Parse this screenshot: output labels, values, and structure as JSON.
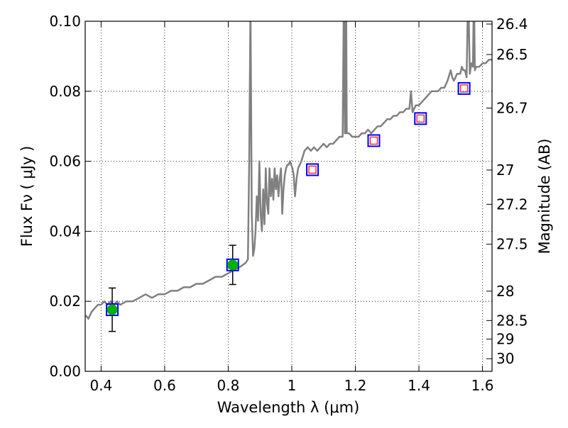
{
  "chart_data": {
    "type": "line",
    "title": "",
    "xlabel": "Wavelength  λ (μm)",
    "ylabel": "Flux  Fν  ( μJy )",
    "ylabel_right": "Magnitude (AB)",
    "xlim": [
      0.35,
      1.63
    ],
    "ylim": [
      0.0,
      0.1
    ],
    "grid": true,
    "legend": "none",
    "x_ticks": [
      0.4,
      0.6,
      0.8,
      1.0,
      1.2,
      1.4,
      1.6
    ],
    "x_tick_labels": [
      "0.4",
      "0.6",
      "0.8",
      "1",
      "1.2",
      "1.4",
      "1.6"
    ],
    "y_ticks": [
      0.0,
      0.02,
      0.04,
      0.06,
      0.08,
      0.1
    ],
    "y_tick_labels": [
      "0.00",
      "0.02",
      "0.04",
      "0.06",
      "0.08",
      "0.10"
    ],
    "right_ticks": [
      {
        "flux": 0.0992,
        "label": "26.4"
      },
      {
        "flux": 0.0905,
        "label": "26.5"
      },
      {
        "flux": 0.0752,
        "label": "26.7"
      },
      {
        "flux": 0.0575,
        "label": "27"
      },
      {
        "flux": 0.0477,
        "label": "27.2"
      },
      {
        "flux": 0.0363,
        "label": "27.5"
      },
      {
        "flux": 0.0229,
        "label": "28"
      },
      {
        "flux": 0.0145,
        "label": "28.5"
      },
      {
        "flux": 0.0092,
        "label": "29"
      },
      {
        "flux": 0.0036,
        "label": "30"
      }
    ],
    "series": [
      {
        "color": "#808080",
        "x": [
          0.352,
          0.36,
          0.37,
          0.38,
          0.39,
          0.4,
          0.41,
          0.42,
          0.43,
          0.44,
          0.45,
          0.46,
          0.48,
          0.5,
          0.52,
          0.54,
          0.56,
          0.58,
          0.6,
          0.62,
          0.64,
          0.66,
          0.68,
          0.7,
          0.72,
          0.74,
          0.76,
          0.78,
          0.8,
          0.82,
          0.84,
          0.855,
          0.862,
          0.866,
          0.87,
          0.874,
          0.878,
          0.882,
          0.886,
          0.89,
          0.894,
          0.898,
          0.902,
          0.906,
          0.91,
          0.914,
          0.918,
          0.922,
          0.926,
          0.93,
          0.934,
          0.938,
          0.942,
          0.946,
          0.95,
          0.954,
          0.958,
          0.962,
          0.966,
          0.97,
          0.974,
          0.978,
          0.982,
          0.986,
          0.99,
          0.994,
          0.998,
          1.002,
          1.006,
          1.01,
          1.015,
          1.02,
          1.03,
          1.04,
          1.05,
          1.06,
          1.07,
          1.08,
          1.09,
          1.1,
          1.11,
          1.12,
          1.13,
          1.14,
          1.15,
          1.16,
          1.164,
          1.167,
          1.169,
          1.171,
          1.173,
          1.176,
          1.18,
          1.19,
          1.2,
          1.21,
          1.22,
          1.23,
          1.24,
          1.25,
          1.26,
          1.27,
          1.28,
          1.29,
          1.3,
          1.31,
          1.32,
          1.33,
          1.34,
          1.35,
          1.36,
          1.37,
          1.375,
          1.38,
          1.385,
          1.39,
          1.4,
          1.41,
          1.42,
          1.43,
          1.44,
          1.45,
          1.46,
          1.47,
          1.48,
          1.49,
          1.5,
          1.505,
          1.51,
          1.52,
          1.53,
          1.535,
          1.54,
          1.545,
          1.55,
          1.555,
          1.56,
          1.565,
          1.57,
          1.573,
          1.576,
          1.58,
          1.585,
          1.59,
          1.6,
          1.61,
          1.62,
          1.63
        ],
        "y": [
          0.016,
          0.015,
          0.017,
          0.018,
          0.019,
          0.019,
          0.02,
          0.019,
          0.02,
          0.019,
          0.02,
          0.019,
          0.02,
          0.02,
          0.021,
          0.022,
          0.021,
          0.022,
          0.022,
          0.023,
          0.023,
          0.024,
          0.024,
          0.025,
          0.025,
          0.026,
          0.027,
          0.027,
          0.028,
          0.029,
          0.03,
          0.031,
          0.032,
          0.06,
          0.105,
          0.045,
          0.033,
          0.035,
          0.04,
          0.05,
          0.043,
          0.06,
          0.045,
          0.04,
          0.052,
          0.042,
          0.058,
          0.048,
          0.045,
          0.058,
          0.05,
          0.055,
          0.049,
          0.058,
          0.052,
          0.056,
          0.05,
          0.055,
          0.058,
          0.045,
          0.052,
          0.056,
          0.058,
          0.059,
          0.059,
          0.06,
          0.059,
          0.058,
          0.056,
          0.05,
          0.055,
          0.058,
          0.06,
          0.063,
          0.064,
          0.063,
          0.064,
          0.063,
          0.064,
          0.065,
          0.064,
          0.065,
          0.065,
          0.066,
          0.067,
          0.067,
          0.11,
          0.068,
          0.068,
          0.11,
          0.068,
          0.068,
          0.068,
          0.067,
          0.067,
          0.067,
          0.068,
          0.068,
          0.069,
          0.068,
          0.069,
          0.07,
          0.07,
          0.071,
          0.072,
          0.072,
          0.073,
          0.073,
          0.074,
          0.074,
          0.075,
          0.075,
          0.08,
          0.074,
          0.075,
          0.076,
          0.076,
          0.077,
          0.078,
          0.079,
          0.08,
          0.08,
          0.08,
          0.081,
          0.081,
          0.083,
          0.086,
          0.084,
          0.083,
          0.085,
          0.085,
          0.087,
          0.086,
          0.086,
          0.084,
          0.11,
          0.085,
          0.088,
          0.087,
          0.11,
          0.086,
          0.087,
          0.087,
          0.087,
          0.088,
          0.088,
          0.089,
          0.089
        ]
      }
    ],
    "detections": {
      "x": [
        0.435,
        0.814
      ],
      "y": [
        0.0176,
        0.0304
      ],
      "yerr": [
        0.0062,
        0.0056
      ],
      "marker_color": "#00b000"
    },
    "model_points": {
      "x": [
        0.435,
        0.814,
        1.065,
        1.258,
        1.405,
        1.542
      ],
      "y": [
        0.0176,
        0.0304,
        0.0576,
        0.0659,
        0.0722,
        0.0808
      ],
      "marker_color": "#0000ff"
    },
    "predicted_points": {
      "x": [
        1.065,
        1.258,
        1.405,
        1.542
      ],
      "y": [
        0.0576,
        0.0659,
        0.0722,
        0.0808
      ],
      "marker_color": "#ff3030"
    }
  }
}
